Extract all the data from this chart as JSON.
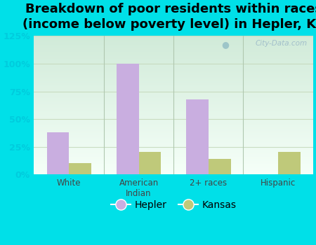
{
  "title": "Breakdown of poor residents within races\n(income below poverty level) in Hepler, KS",
  "categories": [
    "White",
    "American\nIndian",
    "2+ races",
    "Hispanic"
  ],
  "hepler_values": [
    38,
    100,
    68,
    0
  ],
  "kansas_values": [
    10,
    20,
    14,
    20
  ],
  "hepler_color": "#c9aee0",
  "kansas_color": "#bfc97a",
  "background_outer": "#00e0e8",
  "ylim": [
    0,
    125
  ],
  "yticks": [
    0,
    25,
    50,
    75,
    100,
    125
  ],
  "ytick_labels": [
    "0%",
    "25%",
    "50%",
    "75%",
    "100%",
    "125%"
  ],
  "title_fontsize": 13,
  "legend_labels": [
    "Hepler",
    "Kansas"
  ],
  "bar_width": 0.32,
  "watermark": "City-Data.com",
  "ytick_color": "#00ccdd",
  "gridline_color": "#d8e8d0",
  "plot_bg_top": "#d0ead8",
  "plot_bg_bottom": "#f5fff8"
}
